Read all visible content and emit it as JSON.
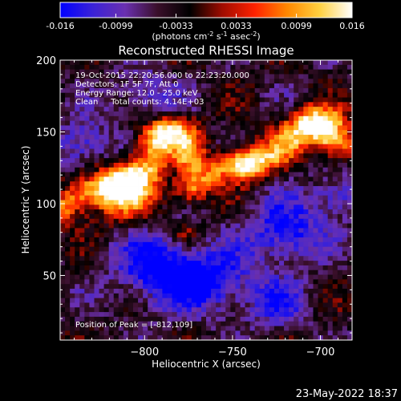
{
  "colorbar": {
    "tick_labels": [
      "-0.016",
      "-0.0099",
      "-0.0033",
      "0.0033",
      "0.0099",
      "0.016"
    ],
    "tick_values": [
      -0.016,
      -0.0099,
      -0.0033,
      0.0033,
      0.0099,
      0.016
    ],
    "range": [
      -0.016,
      0.016
    ],
    "units": {
      "p1": "(photons cm",
      "e1": "-2",
      "p2": " s",
      "e2": "-1",
      "p3": " asec",
      "e3": "-2",
      "p4": ")"
    },
    "colormap": [
      "#0000ff",
      "#3a22d8",
      "#6a30b0",
      "#3a0f2a",
      "#000000",
      "#a00c00",
      "#ff2200",
      "#ff8800",
      "#ffd040",
      "#ffffff"
    ]
  },
  "footer": {
    "datestamp": "23-May-2022 18:37"
  },
  "chart_data": {
    "type": "heatmap",
    "title": "Reconstructed RHESSI Image",
    "xlabel": "Heliocentric X (arcsec)",
    "ylabel": "Heliocentric Y (arcsec)",
    "xlim": [
      -848,
      -682
    ],
    "ylim": [
      5,
      200
    ],
    "xticks": [
      -800,
      -750,
      -700
    ],
    "xtick_labels": [
      "−800",
      "−750",
      "−700"
    ],
    "yticks": [
      50,
      100,
      150,
      200
    ],
    "ytick_labels": [
      "50",
      "100",
      "150",
      "200"
    ],
    "info_lines": [
      "19-Oct-2015 22:20:56.000 to 22:23:20.000",
      "Detectors: 1F 5F 7F, Att 0",
      "Energy Range: 12.0 - 25.0 keV",
      "Clean     Total counts: 4.14E+03"
    ],
    "peak_label": "Position of Peak = [-812,109]",
    "peak_position": [
      -812,
      109
    ],
    "value_range": [
      -0.016,
      0.016
    ]
  }
}
